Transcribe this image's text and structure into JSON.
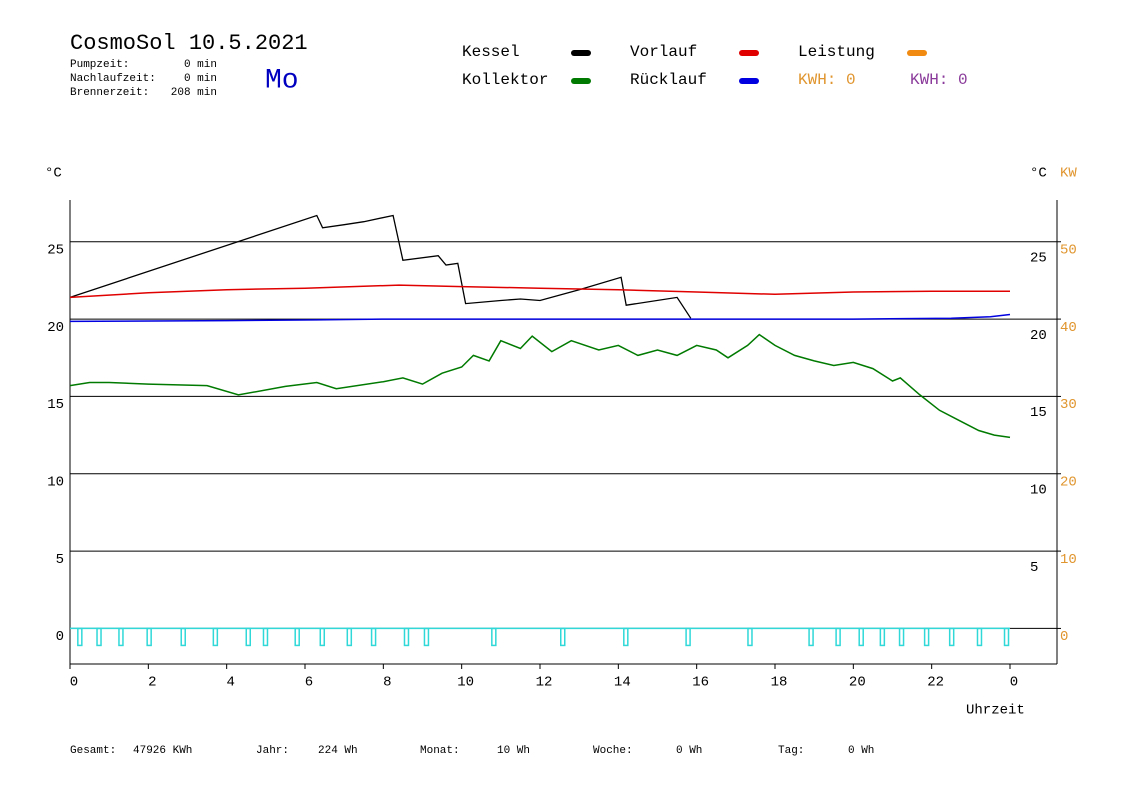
{
  "header": {
    "title": "CosmoSol 10.5.2021",
    "day": "Mo",
    "stats": [
      {
        "label": "Pumpzeit:",
        "value": "0 min"
      },
      {
        "label": "Nachlaufzeit:",
        "value": "0 min"
      },
      {
        "label": "Brennerzeit:",
        "value": "208 min"
      }
    ]
  },
  "kwh": [
    {
      "text": "KWH: 0",
      "color": "#e0952e"
    },
    {
      "text": "KWH: 0",
      "color": "#8a3a9a"
    }
  ],
  "chart_data": {
    "type": "line",
    "ylabel": "°C",
    "y2label": "°C",
    "y2unit": "KW",
    "xlabel": "Uhrzeit",
    "xlim": [
      0,
      25.2
    ],
    "xticks": [
      0,
      2,
      4,
      6,
      8,
      10,
      12,
      14,
      16,
      18,
      20,
      22,
      {
        "value": 24,
        "label": "0"
      }
    ],
    "ylim": [
      -2.3,
      27.7
    ],
    "yticks": [
      0,
      5,
      10,
      15,
      20,
      25
    ],
    "y2lim": [
      -4.6,
      55.4
    ],
    "y2ticks": [
      0,
      10,
      20,
      30,
      40,
      50
    ],
    "y2color": "#e0952e",
    "series": [
      {
        "name": "Kessel",
        "color": "#000000",
        "x": [
          0,
          6.3,
          6.45,
          7.0,
          7.5,
          8.25,
          8.5,
          9.4,
          9.6,
          9.9,
          10.1,
          11.0,
          11.5,
          12.0,
          13.0,
          14.07,
          14.2,
          15.5,
          15.85
        ],
        "values": [
          21.4,
          26.7,
          25.9,
          26.1,
          26.3,
          26.7,
          23.8,
          24.1,
          23.5,
          23.6,
          21.0,
          21.2,
          21.3,
          21.2,
          21.9,
          22.7,
          20.9,
          21.4,
          20.05
        ]
      },
      {
        "name": "Kollektor",
        "color": "#007a00",
        "x": [
          0,
          0.5,
          1,
          2,
          3.5,
          4.3,
          5.5,
          6.3,
          6.8,
          8,
          8.5,
          9,
          9.5,
          10,
          10.3,
          10.7,
          11,
          11.5,
          11.8,
          12.3,
          12.8,
          13.5,
          14,
          14.5,
          15,
          15.5,
          16,
          16.5,
          16.8,
          17.3,
          17.6,
          18,
          18.5,
          19,
          19.5,
          20,
          20.5,
          21,
          21.2,
          21.7,
          22.2,
          22.7,
          23.2,
          23.6,
          24
        ],
        "values": [
          15.7,
          15.9,
          15.9,
          15.8,
          15.7,
          15.1,
          15.65,
          15.9,
          15.5,
          15.95,
          16.2,
          15.8,
          16.5,
          16.9,
          17.65,
          17.3,
          18.6,
          18.1,
          18.9,
          17.9,
          18.6,
          18.0,
          18.3,
          17.65,
          18.0,
          17.65,
          18.3,
          18.0,
          17.5,
          18.3,
          19.0,
          18.3,
          17.65,
          17.3,
          17.0,
          17.2,
          16.8,
          16.0,
          16.2,
          15.1,
          14.1,
          13.45,
          12.8,
          12.5,
          12.35
        ]
      },
      {
        "name": "Vorlauf",
        "color": "#e00000",
        "x": [
          0,
          2,
          4,
          6,
          8.4,
          10,
          12,
          14,
          16,
          18,
          20,
          22,
          24
        ],
        "values": [
          21.4,
          21.7,
          21.9,
          22.0,
          22.2,
          22.1,
          22.0,
          21.9,
          21.75,
          21.6,
          21.75,
          21.8,
          21.8
        ]
      },
      {
        "name": "Rücklauf",
        "color": "#0000e0",
        "x": [
          0,
          4,
          6.3,
          8,
          12,
          16,
          20,
          22.5,
          23.5,
          24
        ],
        "values": [
          19.85,
          19.9,
          19.95,
          20.0,
          20.0,
          20.0,
          20.0,
          20.05,
          20.15,
          20.3
        ]
      },
      {
        "name": "Leistung",
        "color": "#f08a10",
        "axis": "y2",
        "x": [],
        "values": []
      }
    ],
    "pump": {
      "color": "#30d8d8",
      "x": [
        0.2,
        0.69,
        1.25,
        1.97,
        2.84,
        3.66,
        4.5,
        4.94,
        5.75,
        6.39,
        7.08,
        7.7,
        8.54,
        9.05,
        10.77,
        12.53,
        14.14,
        15.73,
        17.31,
        18.87,
        19.56,
        20.15,
        20.69,
        21.18,
        21.82,
        22.46,
        23.17,
        23.86
      ]
    }
  },
  "footer": [
    {
      "label": "Gesamt:",
      "value": "47926 KWh"
    },
    {
      "label": "Jahr:",
      "value": "224 Wh"
    },
    {
      "label": "Monat:",
      "value": "10 Wh"
    },
    {
      "label": "Woche:",
      "value": "0 Wh"
    },
    {
      "label": "Tag:",
      "value": "0 Wh"
    }
  ]
}
